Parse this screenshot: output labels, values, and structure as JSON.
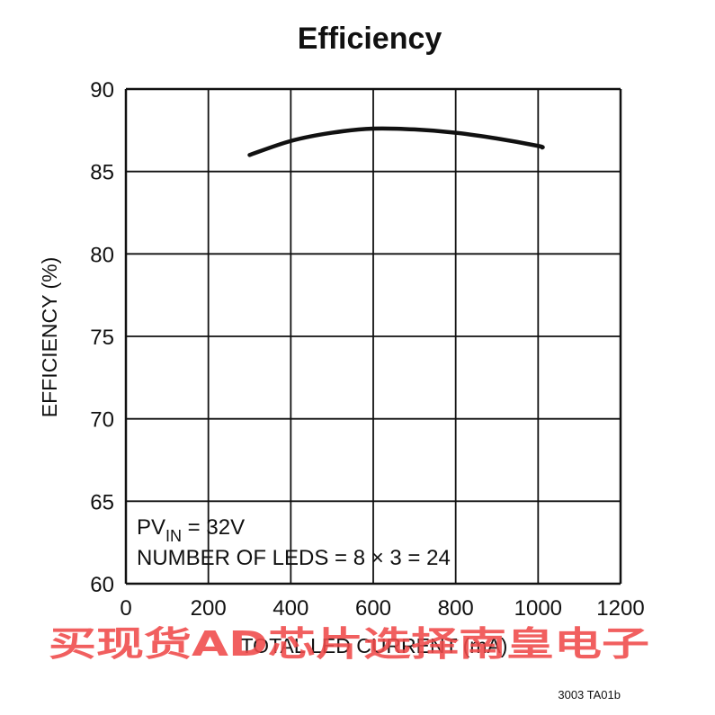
{
  "chart_data": {
    "type": "line",
    "title": "Efficiency",
    "xlabel": "TOTAL LED CURRENT (mA)",
    "ylabel": "EFFICIENCY (%)",
    "xlim": [
      0,
      1200
    ],
    "ylim": [
      60,
      90
    ],
    "xticks": [
      0,
      200,
      400,
      600,
      800,
      1000,
      1200
    ],
    "yticks": [
      60,
      65,
      70,
      75,
      80,
      85,
      90
    ],
    "grid": true,
    "series": [
      {
        "x": [
          300,
          400,
          500,
          600,
          700,
          800,
          900,
          1000,
          1010
        ],
        "y": [
          86.0,
          86.85,
          87.35,
          87.6,
          87.55,
          87.35,
          87.0,
          86.55,
          86.45
        ]
      }
    ],
    "annotations": {
      "pv_prefix": "PV",
      "pv_subscript": "IN",
      "pv_value": " = 32V",
      "leds": "NUMBER OF LEDS = 8 × 3 = 24"
    },
    "figure_code": "3003 TA01b",
    "watermark": "买现货AD芯片选择南皇电子"
  },
  "colors": {
    "line": "#111111",
    "grid": "#111111",
    "watermark": "#f04a4a"
  }
}
